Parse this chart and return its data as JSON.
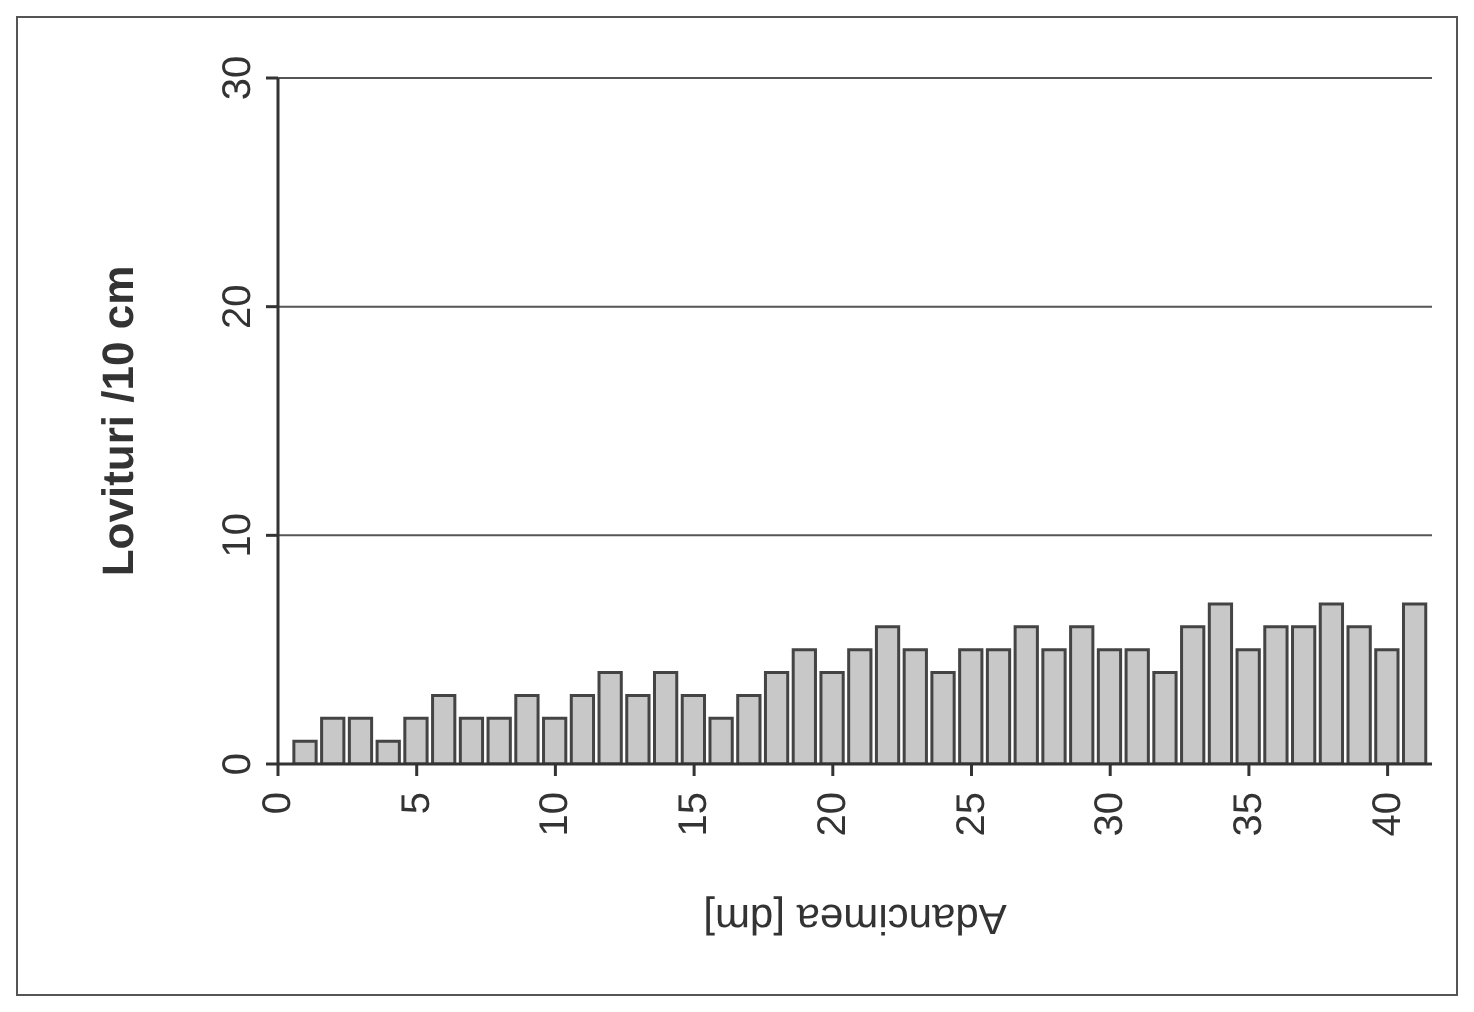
{
  "chart_data": {
    "type": "bar",
    "xlabel": "Adancimea [dm]",
    "ylabel": "Lovituri /10 cm",
    "x": [
      1,
      2,
      3,
      4,
      5,
      6,
      7,
      8,
      9,
      10,
      11,
      12,
      13,
      14,
      15,
      16,
      17,
      18,
      19,
      20,
      21,
      22,
      23,
      24,
      25,
      26,
      27,
      28,
      29,
      30,
      31,
      32,
      33,
      34,
      35,
      36,
      37,
      38,
      39,
      40,
      41
    ],
    "values": [
      1,
      2,
      2,
      1,
      2,
      3,
      2,
      2,
      3,
      2,
      3,
      4,
      3,
      4,
      3,
      2,
      3,
      4,
      5,
      4,
      5,
      6,
      5,
      4,
      5,
      5,
      6,
      5,
      6,
      5,
      5,
      4,
      6,
      7,
      5,
      6,
      6,
      7,
      6,
      5,
      7
    ],
    "color": "#c8c8c8",
    "xlim": [
      0,
      41.6
    ],
    "xticks": [
      0,
      5,
      10,
      15,
      20,
      25,
      30,
      35,
      40
    ],
    "ylim": [
      0,
      30
    ],
    "yticks": [
      0,
      10,
      20,
      30
    ],
    "grid": "y"
  }
}
